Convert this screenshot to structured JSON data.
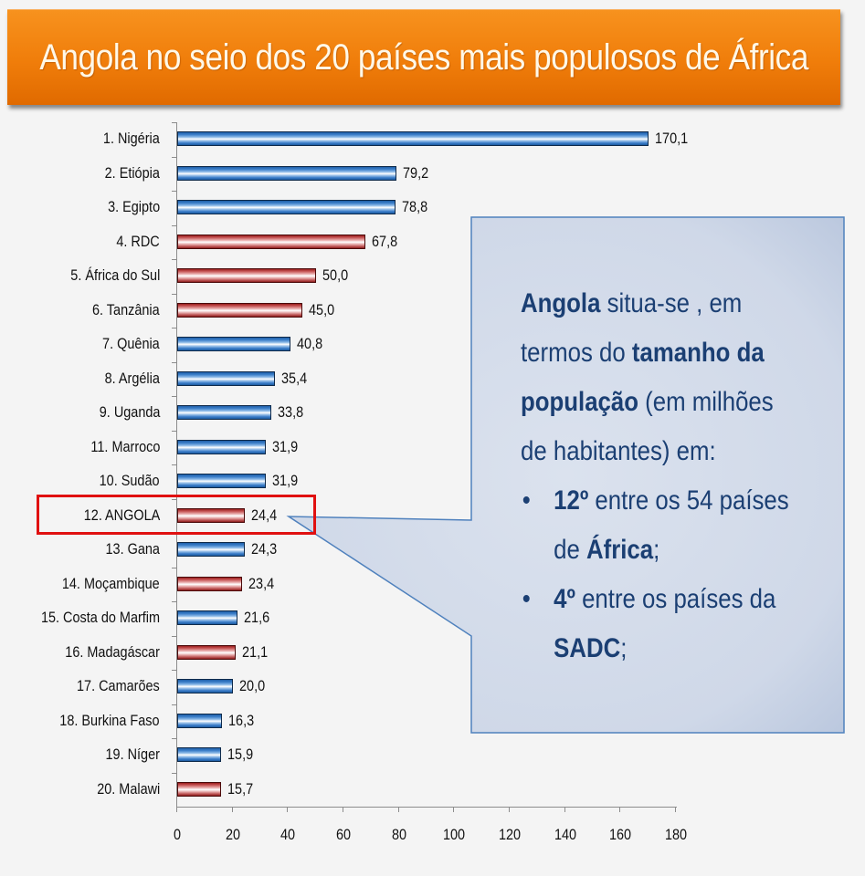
{
  "title": "Angola no seio dos 20 países mais populosos de África",
  "colors": {
    "banner": "#f07d0a",
    "bar_blue": "#3b7ec9",
    "bar_red": "#c85a5a",
    "highlight": "#e01010",
    "callout_fill": "#cdd6e6",
    "callout_text": "#1b3f73"
  },
  "chart_data": {
    "type": "bar",
    "orientation": "horizontal",
    "title": "Angola no seio dos 20 países mais populosos de África",
    "xlabel": "",
    "ylabel": "",
    "unit": "milhões de habitantes",
    "xlim": [
      0,
      180
    ],
    "xticks": [
      "0",
      "20",
      "40",
      "60",
      "80",
      "100",
      "120",
      "140",
      "160",
      "180"
    ],
    "grid": false,
    "legend": null,
    "categories": [
      "1. Nigéria",
      "2. Etiópia",
      "3. Egipto",
      "4. RDC",
      "5. África do Sul",
      "6. Tanzânia",
      "7. Quênia",
      "8. Argélia",
      "9. Uganda",
      "11. Marroco",
      "10. Sudão",
      "12. ANGOLA",
      "13. Gana",
      "14. Moçambique",
      "15. Costa do Marfim",
      "16. Madagáscar",
      "17. Camarões",
      "18. Burkina Faso",
      "19. Níger",
      "20. Malawi"
    ],
    "values": [
      170.1,
      79.2,
      78.8,
      67.8,
      50.0,
      45.0,
      40.8,
      35.4,
      33.8,
      31.9,
      31.9,
      24.4,
      24.3,
      23.4,
      21.6,
      21.1,
      20.0,
      16.3,
      15.9,
      15.7
    ],
    "value_labels": [
      "170,1",
      "79,2",
      "78,8",
      "67,8",
      "50,0",
      "45,0",
      "40,8",
      "35,4",
      "33,8",
      "31,9",
      "31,9",
      "24,4",
      "24,3",
      "23,4",
      "21,6",
      "21,1",
      "20,0",
      "16,3",
      "15,9",
      "15,7"
    ],
    "bar_colors": [
      "blue",
      "blue",
      "blue",
      "red",
      "red",
      "red",
      "blue",
      "blue",
      "blue",
      "blue",
      "blue",
      "red",
      "blue",
      "red",
      "blue",
      "red",
      "blue",
      "blue",
      "blue",
      "red"
    ],
    "color_meaning": {
      "red": "SADC member",
      "blue": "non-SADC"
    },
    "highlighted_category": "12. ANGOLA",
    "annotations": [
      "Angola situa-se , em termos do tamanho da população (em milhões de habitantes) em:",
      "12º entre os 54 países de África;",
      "4º entre os países da SADC;"
    ]
  },
  "callout": {
    "intro_bold": "Angola",
    "intro_rest": " situa-se , em termos do ",
    "bold2": "tamanho da população",
    "rest2": " (em milhões de habitantes) em:",
    "bullets": [
      {
        "bold": "12º",
        "text": " entre os 54 países de ",
        "bold2": "África",
        "tail": ";"
      },
      {
        "bold": "4º",
        "text": " entre os países da ",
        "bold2": "SADC",
        "tail": ";"
      }
    ],
    "bullet_char": "•"
  }
}
